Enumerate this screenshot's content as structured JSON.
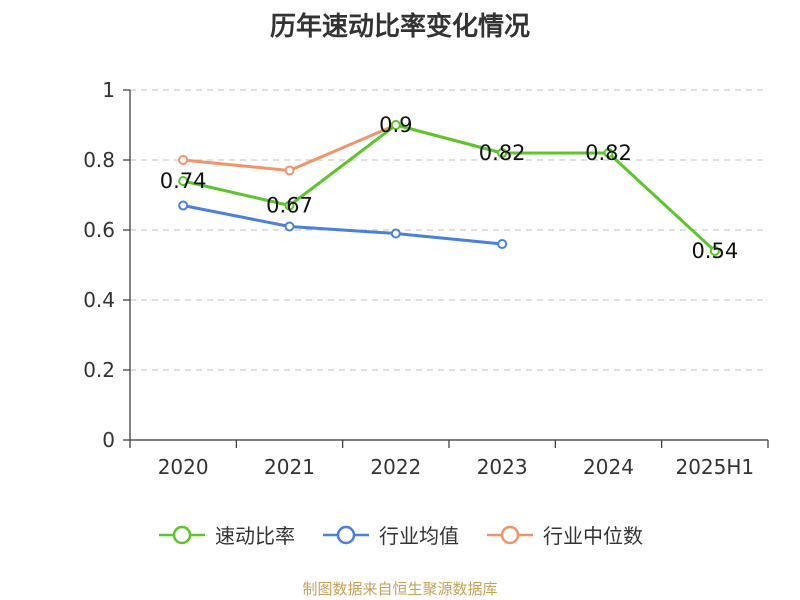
{
  "chart_data": {
    "type": "line",
    "title": "历年速动比率变化情况",
    "categories": [
      "2020",
      "2021",
      "2022",
      "2023",
      "2024",
      "2025H1"
    ],
    "ylim": [
      0,
      1
    ],
    "yticks": [
      0,
      0.2,
      0.4,
      0.6,
      0.8,
      1
    ],
    "ytick_labels": [
      "0",
      "0.2",
      "0.4",
      "0.6",
      "0.8",
      "1"
    ],
    "grid": true,
    "legend_position": "bottom",
    "series": [
      {
        "name": "速动比率",
        "color": "#5ec42e",
        "values": [
          0.74,
          0.67,
          0.9,
          0.82,
          0.82,
          0.54
        ],
        "data_labels": [
          "0.74",
          "0.67",
          "0.9",
          "0.82",
          "0.82",
          "0.54"
        ],
        "show_labels": true
      },
      {
        "name": "行业均值",
        "color": "#4a7fdc",
        "values": [
          0.67,
          0.61,
          0.59,
          0.56,
          null,
          null
        ],
        "show_labels": false
      },
      {
        "name": "行业中位数",
        "color": "#f0956a",
        "values": [
          0.8,
          0.77,
          0.9,
          0.82,
          null,
          null
        ],
        "show_labels": false
      }
    ]
  },
  "source_note": "制图数据来自恒生聚源数据库"
}
